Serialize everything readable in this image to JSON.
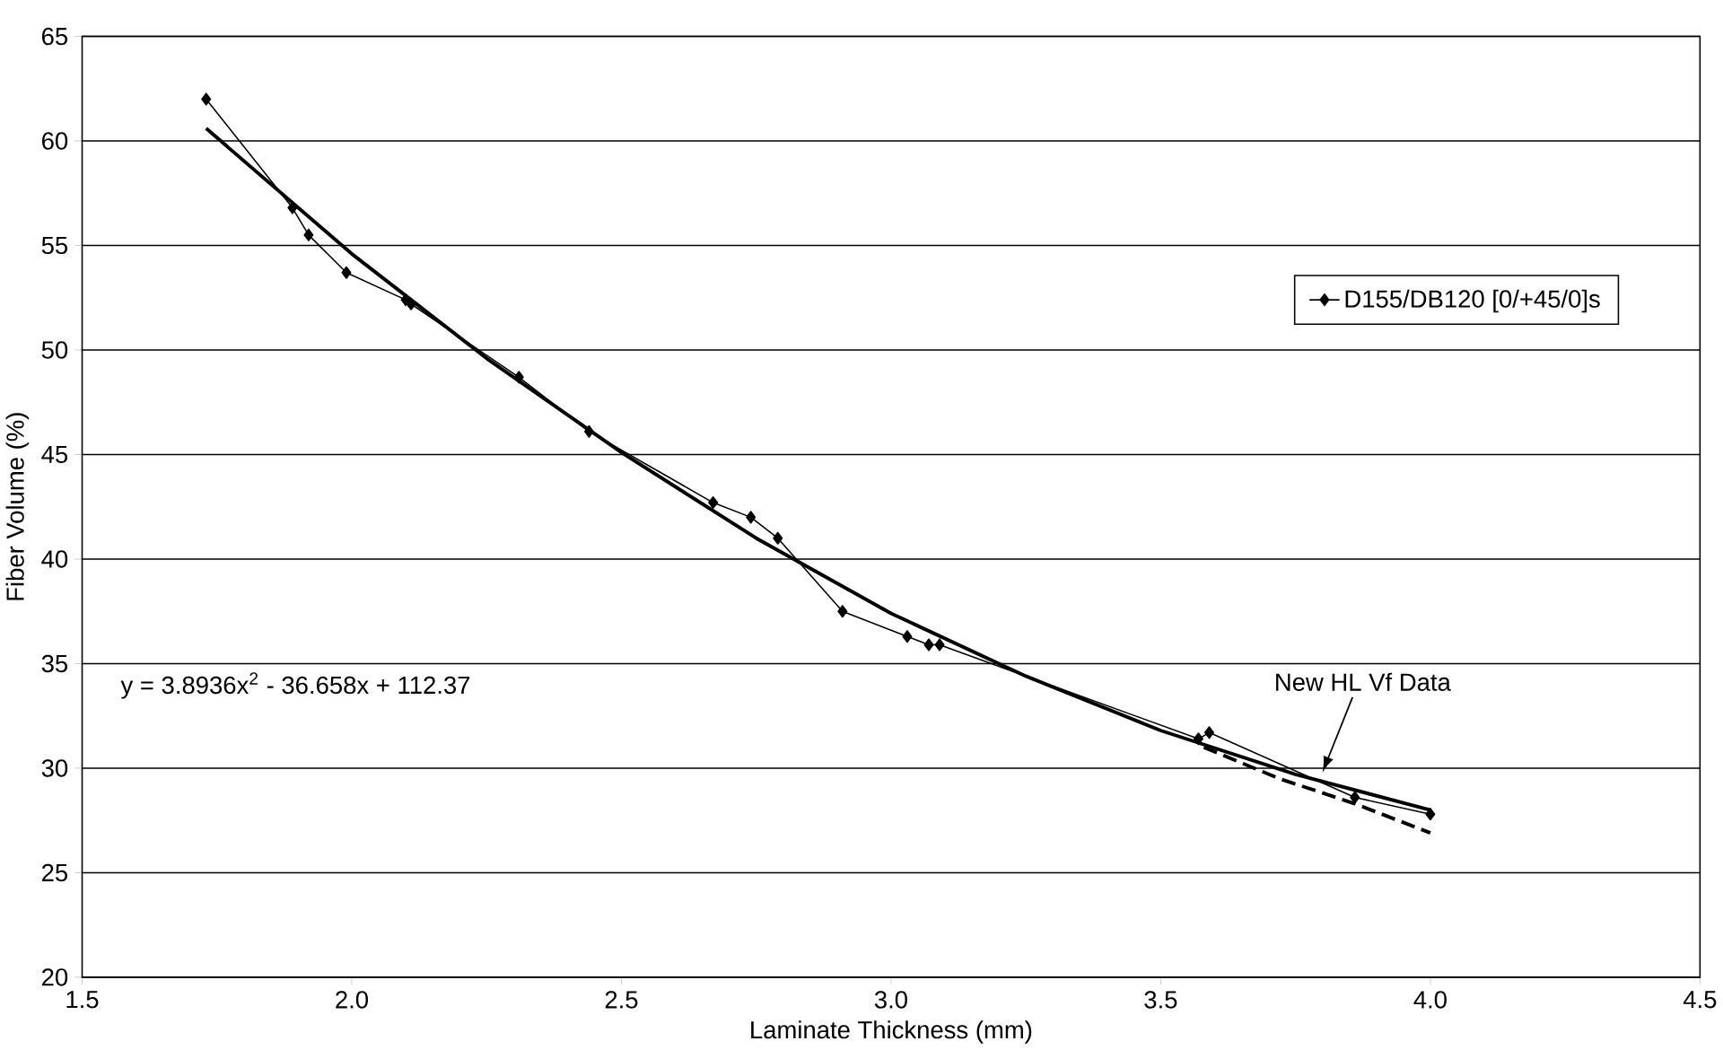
{
  "chart_data": {
    "type": "line",
    "xlabel": "Laminate Thickness (mm)",
    "ylabel": "Fiber Volume (%)",
    "xlim": [
      1.5,
      4.5
    ],
    "ylim": [
      20,
      65
    ],
    "xticks": [
      1.5,
      {
        "value": 2.0,
        "label": "2.0"
      },
      2.5,
      {
        "value": 3.0,
        "label": "3.0"
      },
      3.5,
      {
        "value": 4.0,
        "label": "4.0"
      },
      4.5
    ],
    "yticks": [
      20,
      25,
      30,
      35,
      40,
      45,
      50,
      55,
      60,
      65
    ],
    "grid": "y",
    "legend": "right",
    "series": [
      {
        "name": "D155/DB120 [0/+45/0]s",
        "color": "#000000",
        "marker": "diamond",
        "line_style": "solid",
        "x": [
          1.73,
          1.89,
          1.92,
          1.99,
          2.1,
          2.11,
          2.31,
          2.44,
          2.67,
          2.74,
          2.79,
          2.91,
          3.03,
          3.07,
          3.09,
          3.57,
          3.59,
          3.86,
          4.0
        ],
        "values": [
          62.0,
          56.8,
          55.5,
          53.7,
          52.4,
          52.2,
          48.7,
          46.1,
          42.7,
          42.0,
          41.0,
          37.5,
          36.3,
          35.9,
          35.9,
          31.4,
          31.7,
          28.6,
          27.8
        ]
      },
      {
        "color": "#000000",
        "marker": "none",
        "line_style": "solid",
        "x": [
          1.73,
          2.0,
          2.25,
          2.5,
          2.75,
          3.0,
          3.25,
          3.5,
          3.75,
          4.0
        ],
        "values": [
          60.6,
          54.6,
          49.6,
          45.1,
          41.0,
          37.4,
          34.4,
          31.8,
          29.7,
          28.0
        ]
      },
      {
        "color": "#000000",
        "marker": "none",
        "line_style": "dashed",
        "x": [
          3.58,
          3.72,
          3.86,
          4.0
        ],
        "values": [
          31.0,
          29.5,
          28.3,
          26.9
        ]
      }
    ],
    "annotations": [
      "y = 3.8936x$^{2}$ - 36.658x + 112.37",
      {
        "text": "New HL Vf Data",
        "x": 3.8,
        "y": 29.8
      }
    ]
  }
}
